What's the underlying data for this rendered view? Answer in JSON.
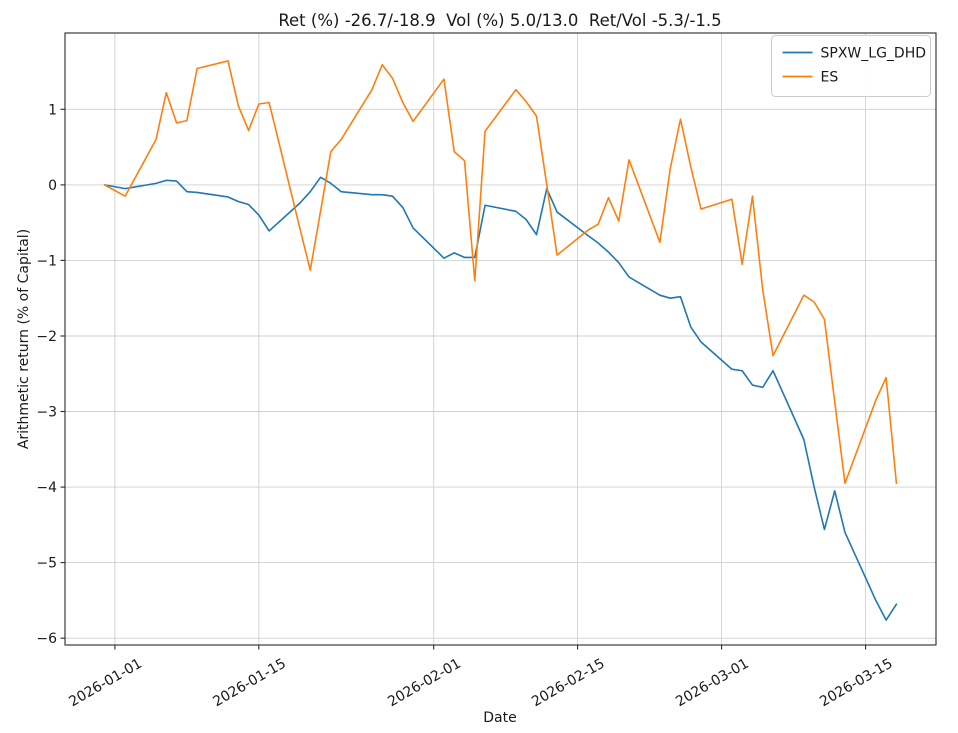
{
  "figure": {
    "title": "Ret (%) -26.7/-18.9  Vol (%) 5.0/13.0  Ret/Vol -5.3/-1.5",
    "xlabel": "Date",
    "ylabel": "Arithmetic return (% of Capital)"
  },
  "chart_data": {
    "type": "line",
    "title": "Ret (%) -26.7/-18.9  Vol (%) 5.0/13.0  Ret/Vol -5.3/-1.5",
    "xlabel": "Date",
    "ylabel": "Arithmetic return (% of Capital)",
    "x": [
      "2025-12-31",
      "2026-01-02",
      "2026-01-05",
      "2026-01-06",
      "2026-01-07",
      "2026-01-08",
      "2026-01-09",
      "2026-01-12",
      "2026-01-13",
      "2026-01-14",
      "2026-01-15",
      "2026-01-16",
      "2026-01-19",
      "2026-01-20",
      "2026-01-21",
      "2026-01-22",
      "2026-01-23",
      "2026-01-26",
      "2026-01-27",
      "2026-01-28",
      "2026-01-29",
      "2026-01-30",
      "2026-02-02",
      "2026-02-03",
      "2026-02-04",
      "2026-02-05",
      "2026-02-06",
      "2026-02-09",
      "2026-02-10",
      "2026-02-11",
      "2026-02-12",
      "2026-02-13",
      "2026-02-16",
      "2026-02-17",
      "2026-02-18",
      "2026-02-19",
      "2026-02-20",
      "2026-02-23",
      "2026-02-24",
      "2026-02-25",
      "2026-02-26",
      "2026-02-27",
      "2026-03-02",
      "2026-03-03",
      "2026-03-04",
      "2026-03-05",
      "2026-03-06",
      "2026-03-09",
      "2026-03-10",
      "2026-03-11",
      "2026-03-12",
      "2026-03-13",
      "2026-03-16",
      "2026-03-17",
      "2026-03-18"
    ],
    "series": [
      {
        "name": "SPXW_LG_DHD",
        "color": "#1f77b4",
        "values": [
          0.0,
          -0.05,
          0.02,
          0.06,
          0.05,
          -0.09,
          -0.1,
          -0.16,
          -0.22,
          -0.26,
          -0.4,
          -0.61,
          -0.24,
          -0.09,
          0.1,
          0.02,
          -0.09,
          -0.13,
          -0.13,
          -0.15,
          -0.3,
          -0.57,
          -0.97,
          -0.9,
          -0.96,
          -0.96,
          -0.27,
          -0.35,
          -0.46,
          -0.66,
          -0.05,
          -0.36,
          -0.67,
          -0.77,
          -0.89,
          -1.03,
          -1.22,
          -1.46,
          -1.5,
          -1.48,
          -1.88,
          -2.08,
          -2.44,
          -2.46,
          -2.65,
          -2.68,
          -2.46,
          -3.37,
          -4.0,
          -4.56,
          -4.05,
          -4.6,
          -5.5,
          -5.76,
          -5.55
        ]
      },
      {
        "name": "ES",
        "color": "#ff7f0e",
        "values": [
          0.0,
          -0.15,
          0.6,
          1.22,
          0.82,
          0.85,
          1.54,
          1.64,
          1.05,
          0.72,
          1.07,
          1.09,
          -0.58,
          -1.13,
          -0.35,
          0.44,
          0.6,
          1.26,
          1.59,
          1.41,
          1.09,
          0.84,
          1.4,
          0.44,
          0.32,
          -1.27,
          0.71,
          1.26,
          1.1,
          0.91,
          0.0,
          -0.93,
          -0.6,
          -0.52,
          -0.17,
          -0.48,
          0.33,
          -0.76,
          0.21,
          0.87,
          0.24,
          -0.32,
          -0.19,
          -1.05,
          -0.15,
          -1.39,
          -2.26,
          -1.46,
          -1.55,
          -1.78,
          -2.87,
          -3.95,
          -2.85,
          -2.55,
          -3.95
        ]
      }
    ],
    "xticks": [
      "2026-01-01",
      "2026-01-15",
      "2026-02-01",
      "2026-02-15",
      "2026-03-01",
      "2026-03-15"
    ],
    "yticks": [
      1,
      0,
      -1,
      -2,
      -3,
      -4,
      -5,
      -6
    ],
    "ytick_labels": [
      "1",
      "0",
      "−1",
      "−2",
      "−3",
      "−4",
      "−5",
      "−6"
    ],
    "ylim": [
      -6.09,
      2.01
    ],
    "grid": true,
    "legend": {
      "loc": "upper right",
      "entries": [
        "SPXW_LG_DHD",
        "ES"
      ]
    },
    "style": {
      "grid_color": "#cfcfcf",
      "spine_color": "#2b2b2b",
      "tick_color": "#2b2b2b",
      "legend_edge_color": "#cccccc",
      "background": "#ffffff"
    }
  }
}
